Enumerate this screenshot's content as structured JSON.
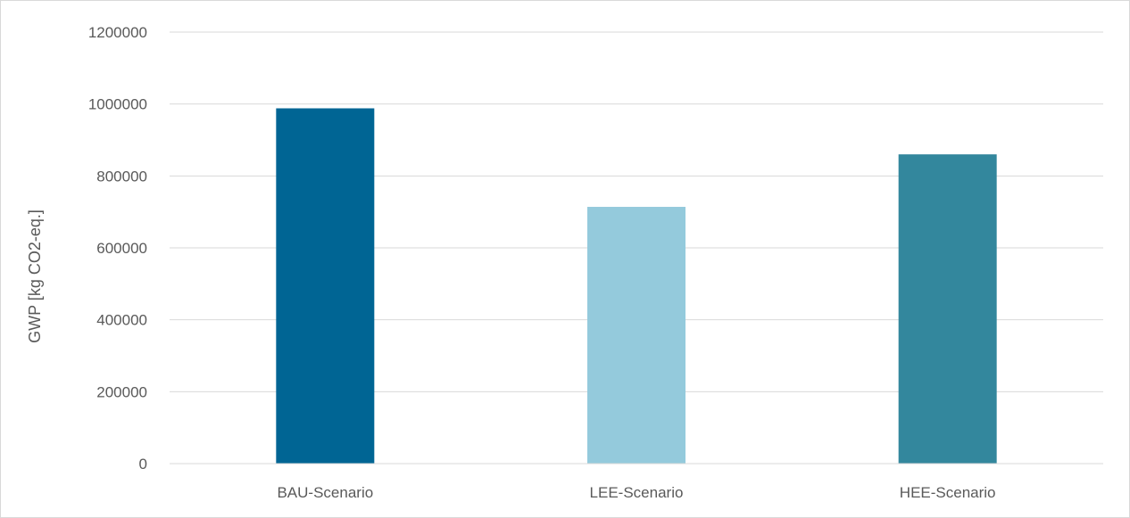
{
  "chart_data": {
    "type": "bar",
    "title": "",
    "xlabel": "",
    "ylabel": "GWP [kg CO2-eq.]",
    "categories": [
      "BAU-Scenario",
      "LEE-Scenario",
      "HEE-Scenario"
    ],
    "values": [
      988000,
      714000,
      860000
    ],
    "colors": [
      "#006594",
      "#94cadc",
      "#33879d"
    ],
    "ylim": [
      0,
      1200000
    ],
    "yticks": [
      "0",
      "200000",
      "400000",
      "600000",
      "800000",
      "1000000",
      "1200000"
    ],
    "grid": true,
    "gridline_color": "#d9d9d9",
    "legend": "none"
  }
}
